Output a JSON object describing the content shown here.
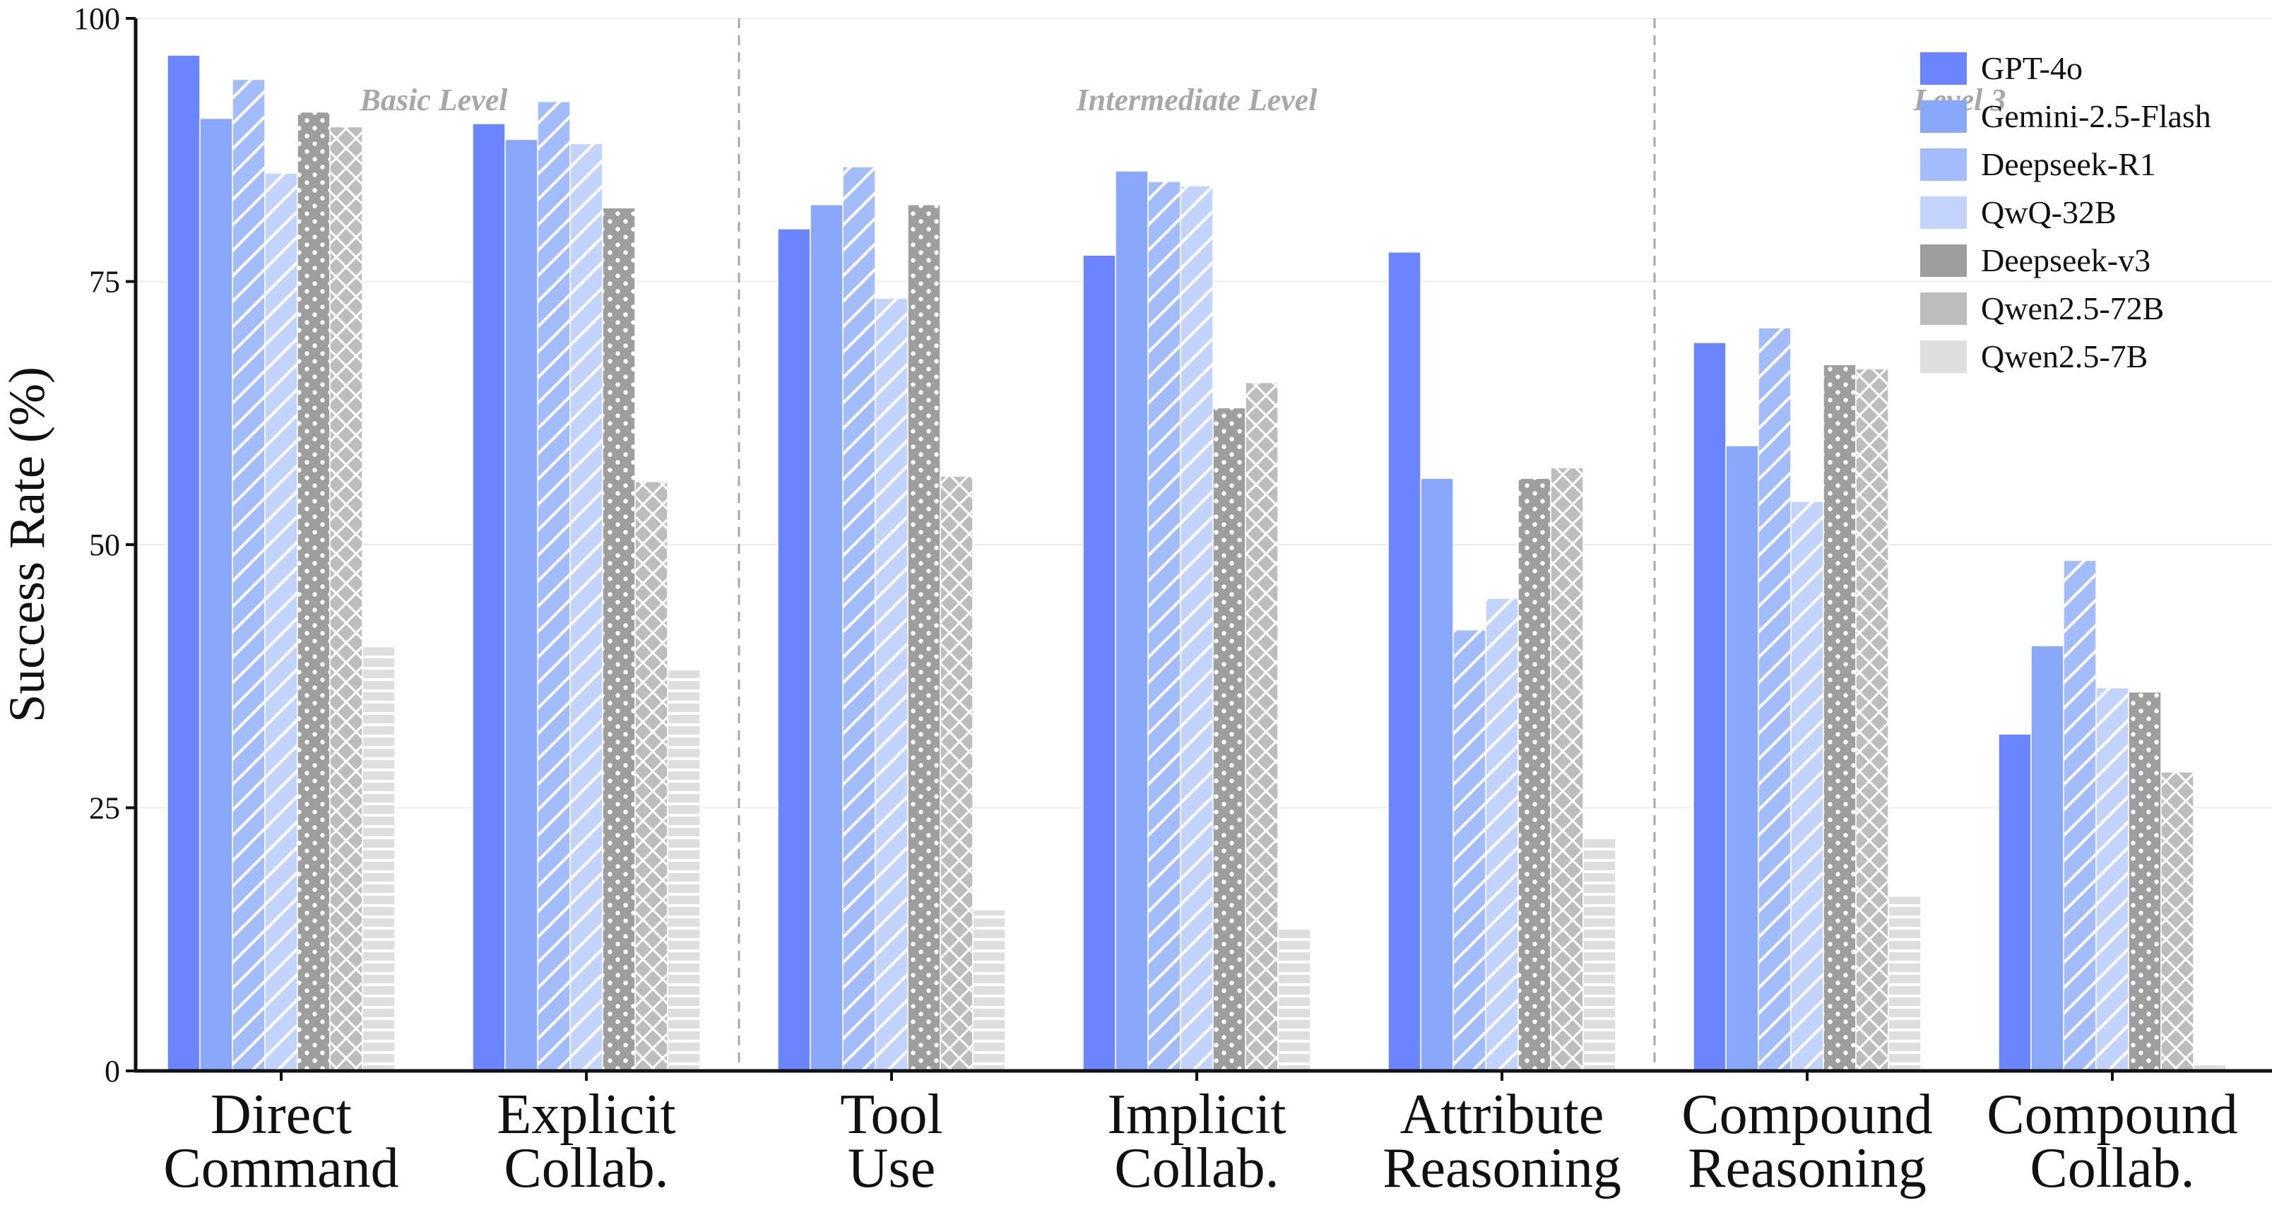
{
  "chart_data": {
    "type": "bar",
    "ylabel": "Success Rate (%)",
    "ylim": [
      0,
      100
    ],
    "yticks": [
      "0",
      "25",
      "50",
      "75",
      "100"
    ],
    "grid": true,
    "legend_position": "top-right",
    "categories": [
      [
        "Direct",
        "Command"
      ],
      [
        "Explicit",
        "Collab."
      ],
      [
        "Tool",
        "Use"
      ],
      [
        "Implicit",
        "Collab."
      ],
      [
        "Attribute",
        "Reasoning"
      ],
      [
        "Compound",
        "Reasoning"
      ],
      [
        "Compound",
        "Collab."
      ]
    ],
    "level_labels": [
      {
        "text": "Basic Level",
        "category_center": 0.5
      },
      {
        "text": "Intermediate Level",
        "category_center": 3
      },
      {
        "text": "Level 3",
        "category_center": 5.5
      }
    ],
    "level_separators_after_category": [
      1,
      4
    ],
    "series": [
      {
        "name": "GPT-4o",
        "color": "#6b84ff",
        "pattern": "solid",
        "values": [
          96.5,
          90.0,
          80.0,
          77.5,
          77.8,
          69.2,
          32.0
        ]
      },
      {
        "name": "Gemini-2.5-Flash",
        "color": "#89a8fb",
        "pattern": "solid",
        "values": [
          90.5,
          88.5,
          82.3,
          85.5,
          56.3,
          59.4,
          40.4
        ]
      },
      {
        "name": "Deepseek-R1",
        "color": "#a3bcfb",
        "pattern": "diagonal",
        "values": [
          94.2,
          92.1,
          85.9,
          84.5,
          41.9,
          70.6,
          48.5
        ]
      },
      {
        "name": "QwQ-32B",
        "color": "#c3d4fc",
        "pattern": "diagonal",
        "values": [
          85.3,
          88.1,
          73.4,
          84.1,
          44.9,
          54.1,
          36.4
        ]
      },
      {
        "name": "Deepseek-v3",
        "color": "#9e9e9e",
        "pattern": "dots",
        "values": [
          91.1,
          82.0,
          82.3,
          63.0,
          56.3,
          67.1,
          36.0
        ]
      },
      {
        "name": "Qwen2.5-72B",
        "color": "#bdbdbd",
        "pattern": "crosshatch",
        "values": [
          89.7,
          56.0,
          56.5,
          65.4,
          57.3,
          66.7,
          28.4
        ]
      },
      {
        "name": "Qwen2.5-7B",
        "color": "#dedede",
        "pattern": "horizontal",
        "values": [
          40.3,
          38.1,
          15.3,
          13.5,
          22.3,
          16.6,
          0.6
        ]
      }
    ]
  }
}
